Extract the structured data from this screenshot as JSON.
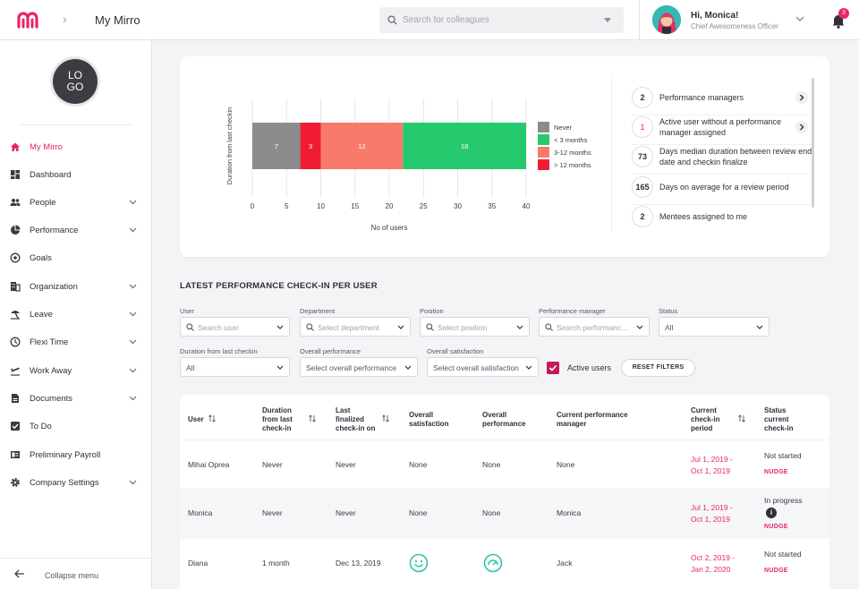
{
  "header": {
    "breadcrumb": "My Mirro",
    "search_placeholder": "Search for colleagues",
    "greeting": "Hi, Monica!",
    "role": "Chief Awesomeness Officer",
    "notification_count": "3"
  },
  "sidebar": {
    "logo_line1": "LO",
    "logo_line2": "GO",
    "items": [
      {
        "label": "My Mirro",
        "icon": "home-icon",
        "active": true,
        "chevron": false
      },
      {
        "label": "Dashboard",
        "icon": "dashboard-icon",
        "chevron": false
      },
      {
        "label": "People",
        "icon": "people-icon",
        "chevron": true
      },
      {
        "label": "Performance",
        "icon": "pie-chart-icon",
        "chevron": true
      },
      {
        "label": "Goals",
        "icon": "target-icon",
        "chevron": false
      },
      {
        "label": "Organization",
        "icon": "building-icon",
        "chevron": true
      },
      {
        "label": "Leave",
        "icon": "leave-icon",
        "chevron": true
      },
      {
        "label": "Flexi Time",
        "icon": "clock-icon",
        "chevron": true
      },
      {
        "label": "Work Away",
        "icon": "plane-icon",
        "chevron": true
      },
      {
        "label": "Documents",
        "icon": "document-icon",
        "chevron": true
      },
      {
        "label": "To Do",
        "icon": "checkbox-icon",
        "chevron": false
      },
      {
        "label": "Preliminary Payroll",
        "icon": "payroll-icon",
        "chevron": false
      },
      {
        "label": "Company Settings",
        "icon": "gear-icon",
        "chevron": true
      }
    ],
    "collapse_label": "Collapse menu"
  },
  "chart_data": {
    "type": "bar",
    "orientation": "horizontal-stacked",
    "ylabel": "Duration from last checkin",
    "xlabel": "No of users",
    "xlim": [
      0,
      40
    ],
    "x_ticks": [
      0,
      5,
      10,
      15,
      20,
      25,
      30,
      35,
      40
    ],
    "series": [
      {
        "name": "Never",
        "value": 7,
        "color": "#8c8c8c"
      },
      {
        "name": "< 3 months",
        "value": 18,
        "color": "#27c96e"
      },
      {
        "name": "3-12 months",
        "value": 12,
        "color": "#f77a6b"
      },
      {
        "name": "> 12 months",
        "value": 3,
        "color": "#ef1d34"
      }
    ],
    "stack_order": [
      "Never",
      "> 12 months",
      "3-12 months",
      "< 3 months"
    ],
    "legend_position": "right"
  },
  "stats": [
    {
      "value": "2",
      "label": "Performance managers",
      "arrow": true,
      "red": false
    },
    {
      "value": "1",
      "label": "Active user without a performance manager assigned",
      "arrow": true,
      "red": true
    },
    {
      "value": "73",
      "label": "Days median duration between review end date and checkin finalize",
      "arrow": false,
      "red": false
    },
    {
      "value": "165",
      "label": "Days on average for a review period",
      "arrow": false,
      "red": false
    },
    {
      "value": "2",
      "label": "Mentees assigned to me",
      "arrow": false,
      "red": false
    }
  ],
  "section_title": "LATEST PERFORMANCE CHECK-IN PER USER",
  "filters": {
    "user": {
      "label": "User",
      "placeholder": "Search user"
    },
    "department": {
      "label": "Department",
      "placeholder": "Select department"
    },
    "position": {
      "label": "Position",
      "placeholder": "Select position"
    },
    "manager": {
      "label": "Performance manager",
      "placeholder": "Search performanc..."
    },
    "status": {
      "label": "Status",
      "value": "All"
    },
    "duration": {
      "label": "Duration from last checkin",
      "value": "All"
    },
    "overall_performance": {
      "label": "Overall performance",
      "value": "Select overall performance"
    },
    "overall_satisfaction": {
      "label": "Overall satisfaction",
      "value": "Select overall satisfaction"
    },
    "active_users_label": "Active users",
    "reset_label": "RESET FILTERS"
  },
  "table": {
    "headers": {
      "user": "User",
      "duration": "Duration from last check-in",
      "last": "Last finalized check-in on",
      "satisfaction": "Overall satisfaction",
      "performance": "Overall performance",
      "manager": "Current performance manager",
      "period": "Current check-in period",
      "status": "Status current check-in"
    },
    "nudge_label": "NUDGE",
    "rows": [
      {
        "user": "Mihai Oprea",
        "duration": "Never",
        "last": "Never",
        "satisfaction": "None",
        "performance": "None",
        "manager": "None",
        "period_start": "Jul 1, 2019 -",
        "period_end": "Oct 1, 2019",
        "status": "Not started"
      },
      {
        "user": "Monica",
        "duration": "Never",
        "last": "Never",
        "satisfaction": "None",
        "performance": "None",
        "manager": "Monica",
        "period_start": "Jul 1, 2019 -",
        "period_end": "Oct 1, 2019",
        "status": "In progress"
      },
      {
        "user": "Diana",
        "duration": "1 month",
        "last": "Dec 13, 2019",
        "satisfaction": "",
        "performance": "",
        "manager": "Jack",
        "period_start": "Oct 2, 2019 -",
        "period_end": "Jan 2, 2020",
        "status": "Not started"
      }
    ]
  }
}
